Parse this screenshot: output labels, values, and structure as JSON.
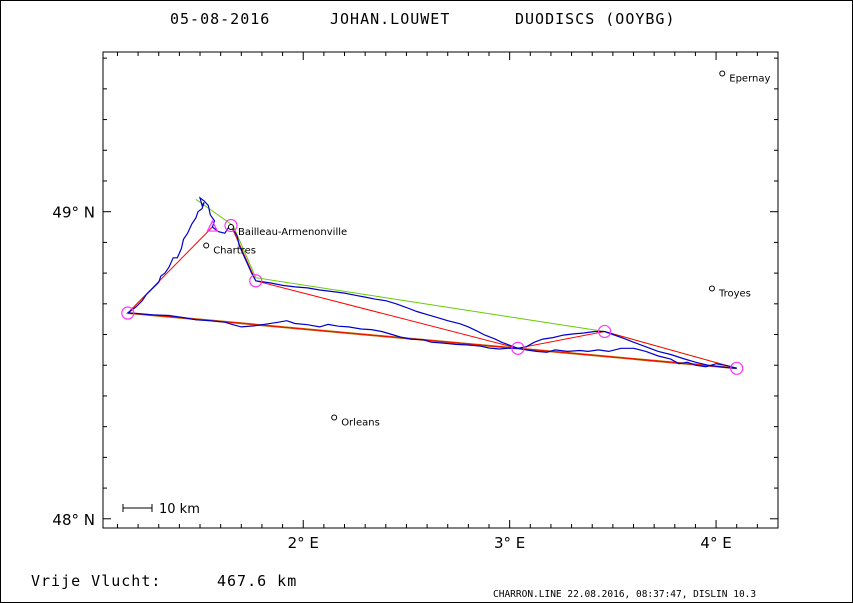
{
  "header": {
    "date": "05-08-2016",
    "pilot": "JOHAN.LOUWET",
    "glider": "DUODISCS (OOYBG)"
  },
  "axes": {
    "lon_range": [
      1.03,
      4.3
    ],
    "lat_range": [
      47.97,
      49.52
    ],
    "lon_ticks": [
      {
        "value": 2,
        "label": "2° E"
      },
      {
        "value": 3,
        "label": "3° E"
      },
      {
        "value": 4,
        "label": "4° E"
      }
    ],
    "lat_ticks": [
      {
        "value": 49,
        "label": "49° N"
      },
      {
        "value": 48,
        "label": "48° N"
      }
    ],
    "minor_tick_step": 0.1
  },
  "places": [
    {
      "name": "Epernay",
      "lon": 4.03,
      "lat": 49.45
    },
    {
      "name": "Bailleau-Armenonville",
      "lon": 1.65,
      "lat": 48.95
    },
    {
      "name": "Chartres",
      "lon": 1.53,
      "lat": 48.89
    },
    {
      "name": "Troyes",
      "lon": 3.98,
      "lat": 48.75
    },
    {
      "name": "Orleans",
      "lon": 2.15,
      "lat": 48.33
    }
  ],
  "turnpoints": [
    {
      "lon": 1.65,
      "lat": 48.955
    },
    {
      "lon": 1.77,
      "lat": 48.775
    },
    {
      "lon": 3.04,
      "lat": 48.555
    },
    {
      "lon": 3.46,
      "lat": 48.61
    },
    {
      "lon": 4.1,
      "lat": 48.49
    },
    {
      "lon": 1.15,
      "lat": 48.67
    }
  ],
  "start_marker": {
    "lon": 1.56,
    "lat": 48.95
  },
  "task_route": [
    [
      1.65,
      48.955
    ],
    [
      1.77,
      48.775
    ],
    [
      3.04,
      48.555
    ],
    [
      3.46,
      48.61
    ],
    [
      4.1,
      48.49
    ],
    [
      1.15,
      48.67
    ],
    [
      1.56,
      48.95
    ]
  ],
  "optimized_route": [
    [
      1.48,
      49.04
    ],
    [
      1.66,
      48.955
    ],
    [
      1.77,
      48.785
    ],
    [
      3.46,
      48.61
    ],
    [
      4.1,
      48.49
    ],
    [
      1.15,
      48.67
    ],
    [
      1.24,
      48.73
    ]
  ],
  "closing_leg": [
    [
      4.1,
      48.49
    ],
    [
      1.15,
      48.67
    ]
  ],
  "flight_track": [
    [
      1.64,
      48.95
    ],
    [
      1.62,
      48.93
    ],
    [
      1.59,
      48.935
    ],
    [
      1.57,
      48.945
    ],
    [
      1.56,
      48.95
    ],
    [
      1.57,
      48.97
    ],
    [
      1.55,
      48.99
    ],
    [
      1.54,
      49.02
    ],
    [
      1.52,
      49.035
    ],
    [
      1.5,
      49.045
    ],
    [
      1.51,
      49.02
    ],
    [
      1.52,
      49.03
    ],
    [
      1.51,
      49.01
    ],
    [
      1.49,
      49.0
    ],
    [
      1.48,
      48.98
    ],
    [
      1.46,
      48.96
    ],
    [
      1.44,
      48.93
    ],
    [
      1.42,
      48.91
    ],
    [
      1.41,
      48.88
    ],
    [
      1.39,
      48.85
    ],
    [
      1.37,
      48.85
    ],
    [
      1.35,
      48.82
    ],
    [
      1.33,
      48.8
    ],
    [
      1.31,
      48.79
    ],
    [
      1.3,
      48.77
    ],
    [
      1.27,
      48.75
    ],
    [
      1.24,
      48.73
    ],
    [
      1.22,
      48.71
    ],
    [
      1.19,
      48.69
    ],
    [
      1.15,
      48.67
    ],
    [
      1.2,
      48.668
    ],
    [
      1.27,
      48.664
    ],
    [
      1.35,
      48.662
    ],
    [
      1.42,
      48.655
    ],
    [
      1.48,
      48.648
    ],
    [
      1.55,
      48.645
    ],
    [
      1.62,
      48.64
    ],
    [
      1.66,
      48.632
    ],
    [
      1.7,
      48.625
    ],
    [
      1.76,
      48.628
    ],
    [
      1.83,
      48.635
    ],
    [
      1.88,
      48.64
    ],
    [
      1.92,
      48.645
    ],
    [
      1.96,
      48.636
    ],
    [
      2.02,
      48.632
    ],
    [
      2.08,
      48.625
    ],
    [
      2.12,
      48.633
    ],
    [
      2.17,
      48.627
    ],
    [
      2.22,
      48.625
    ],
    [
      2.28,
      48.618
    ],
    [
      2.33,
      48.616
    ],
    [
      2.38,
      48.61
    ],
    [
      2.43,
      48.6
    ],
    [
      2.47,
      48.592
    ],
    [
      2.52,
      48.585
    ],
    [
      2.58,
      48.583
    ],
    [
      2.62,
      48.575
    ],
    [
      2.68,
      48.572
    ],
    [
      2.74,
      48.568
    ],
    [
      2.8,
      48.566
    ],
    [
      2.86,
      48.562
    ],
    [
      2.9,
      48.556
    ],
    [
      2.95,
      48.553
    ],
    [
      2.99,
      48.555
    ],
    [
      3.04,
      48.555
    ],
    [
      3.08,
      48.56
    ],
    [
      3.12,
      48.575
    ],
    [
      3.16,
      48.585
    ],
    [
      3.21,
      48.59
    ],
    [
      3.26,
      48.598
    ],
    [
      3.31,
      48.602
    ],
    [
      3.36,
      48.605
    ],
    [
      3.41,
      48.61
    ],
    [
      3.46,
      48.61
    ],
    [
      3.5,
      48.6
    ],
    [
      3.55,
      48.588
    ],
    [
      3.6,
      48.575
    ],
    [
      3.66,
      48.56
    ],
    [
      3.72,
      48.545
    ],
    [
      3.78,
      48.535
    ],
    [
      3.84,
      48.522
    ],
    [
      3.9,
      48.51
    ],
    [
      3.96,
      48.5
    ],
    [
      4.02,
      48.495
    ],
    [
      4.06,
      48.492
    ],
    [
      4.1,
      48.49
    ],
    [
      4.06,
      48.498
    ],
    [
      4.0,
      48.505
    ],
    [
      3.95,
      48.495
    ],
    [
      3.9,
      48.5
    ],
    [
      3.86,
      48.51
    ],
    [
      3.82,
      48.505
    ],
    [
      3.78,
      48.52
    ],
    [
      3.72,
      48.53
    ],
    [
      3.66,
      48.545
    ],
    [
      3.6,
      48.555
    ],
    [
      3.54,
      48.555
    ],
    [
      3.48,
      48.545
    ],
    [
      3.43,
      48.55
    ],
    [
      3.38,
      48.545
    ],
    [
      3.34,
      48.548
    ],
    [
      3.28,
      48.545
    ],
    [
      3.22,
      48.55
    ],
    [
      3.18,
      48.542
    ],
    [
      3.13,
      48.545
    ],
    [
      3.08,
      48.55
    ],
    [
      3.04,
      48.555
    ],
    [
      3.0,
      48.565
    ],
    [
      2.96,
      48.575
    ],
    [
      2.93,
      48.585
    ],
    [
      2.88,
      48.598
    ],
    [
      2.84,
      48.612
    ],
    [
      2.8,
      48.625
    ],
    [
      2.76,
      48.635
    ],
    [
      2.7,
      48.645
    ],
    [
      2.65,
      48.655
    ],
    [
      2.6,
      48.665
    ],
    [
      2.55,
      48.675
    ],
    [
      2.5,
      48.688
    ],
    [
      2.45,
      48.7
    ],
    [
      2.4,
      48.71
    ],
    [
      2.35,
      48.715
    ],
    [
      2.3,
      48.722
    ],
    [
      2.25,
      48.728
    ],
    [
      2.2,
      48.735
    ],
    [
      2.14,
      48.74
    ],
    [
      2.08,
      48.745
    ],
    [
      2.02,
      48.752
    ],
    [
      1.96,
      48.755
    ],
    [
      1.9,
      48.76
    ],
    [
      1.84,
      48.768
    ],
    [
      1.77,
      48.775
    ],
    [
      1.75,
      48.8
    ],
    [
      1.73,
      48.83
    ],
    [
      1.71,
      48.86
    ],
    [
      1.69,
      48.89
    ],
    [
      1.68,
      48.92
    ],
    [
      1.66,
      48.945
    ],
    [
      1.65,
      48.955
    ]
  ],
  "scale_bar": {
    "label": "10 km"
  },
  "footer": {
    "distance_label": "Vrije Vlucht:",
    "distance_value": "467.6 km",
    "software": "CHARRON.LINE 22.08.2016, 08:37:47, DISLIN 10.3"
  },
  "colors": {
    "track": "#0000cc",
    "task_route": "#ff0000",
    "optimized_route": "#66cc00",
    "closing_leg": "#cc6600",
    "turnpoint": "#ff33ff",
    "frame": "#000000"
  }
}
